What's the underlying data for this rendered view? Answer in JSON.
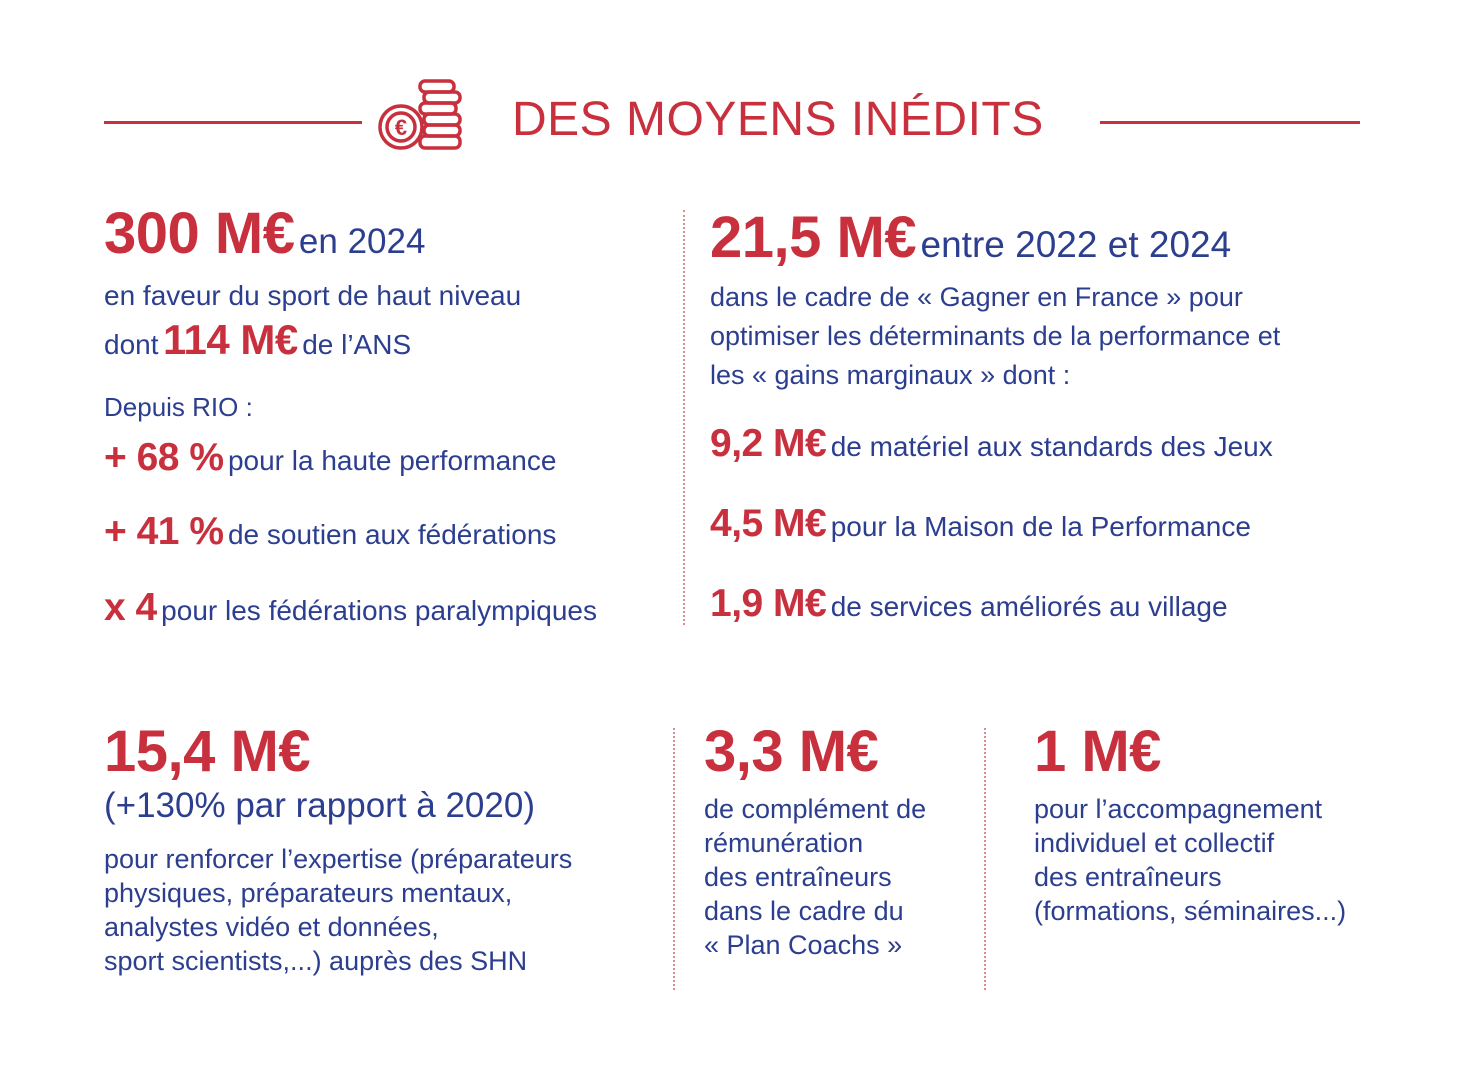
{
  "header": {
    "title": "DES MOYENS INÉDITS",
    "icon": "coins-euro-icon",
    "accent_color": "#c8303d",
    "text_color": "#2c3e8f"
  },
  "left_top": {
    "amount": "300 M€",
    "amount_suffix": "en 2024",
    "line1": "en faveur du sport de haut niveau",
    "line2_prefix": "dont",
    "line2_amount": "114 M€",
    "line2_suffix": "de l’ANS",
    "since_label": "Depuis RIO :",
    "stats": [
      {
        "value": "+ 68 %",
        "text": "pour la haute performance"
      },
      {
        "value": "+ 41 %",
        "text": "de soutien aux fédérations"
      },
      {
        "value": "x 4",
        "text": "pour les fédérations paralympiques"
      }
    ]
  },
  "right_top": {
    "amount": "21,5 M€",
    "amount_suffix": "entre 2022 et 2024",
    "desc_lines": [
      "dans le cadre de « Gagner en France » pour",
      "optimiser les déterminants de la performance et",
      "les « gains marginaux » dont :"
    ],
    "items": [
      {
        "value": "9,2 M€",
        "text": "de matériel aux standards des Jeux"
      },
      {
        "value": "4,5 M€",
        "text": "pour la Maison de la Performance"
      },
      {
        "value": "1,9 M€",
        "text": "de services améliorés au village"
      }
    ]
  },
  "bottom_left": {
    "amount": "15,4 M€",
    "sub": "(+130% par rapport à 2020)",
    "lines": [
      "pour renforcer l’expertise (préparateurs",
      "physiques, préparateurs mentaux,",
      "analystes vidéo et données,",
      "sport scientists,...) auprès des SHN"
    ]
  },
  "bottom_middle": {
    "amount": "3,3 M€",
    "lines": [
      "de complément de",
      "rémunération",
      "des entraîneurs",
      "dans le cadre du",
      "« Plan Coachs »"
    ]
  },
  "bottom_right": {
    "amount": "1 M€",
    "lines": [
      "pour l’accompagnement",
      "individuel et collectif",
      "des entraîneurs",
      "(formations, séminaires...)"
    ]
  }
}
